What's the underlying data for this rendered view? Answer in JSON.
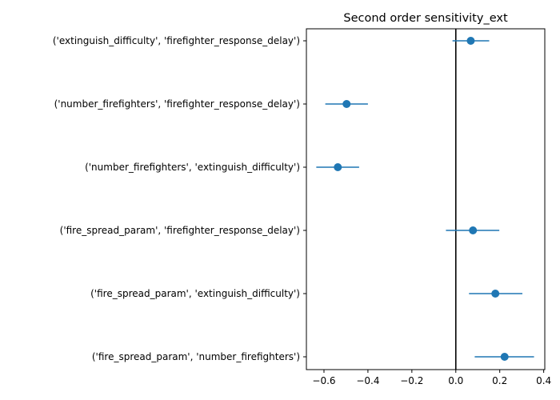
{
  "chart_data": {
    "type": "scatter",
    "title": "Second order sensitivity_ext",
    "xlabel": "",
    "ylabel": "",
    "xlim": [
      -0.68,
      0.405
    ],
    "x_ticks": [
      -0.6,
      -0.4,
      -0.2,
      0.0,
      0.2,
      0.4
    ],
    "x_tick_labels": [
      "−0.6",
      "−0.4",
      "−0.2",
      "0.0",
      "0.2",
      "0.4"
    ],
    "reference_line_x": 0,
    "grid": false,
    "marker_color": "#1f77b4",
    "reference_line_color": "#000000",
    "categories": [
      "('extinguish_difficulty', 'firefighter_response_delay')",
      "('number_firefighters', 'firefighter_response_delay')",
      "('number_firefighters', 'extinguish_difficulty')",
      "('fire_spread_param', 'firefighter_response_delay')",
      "('fire_spread_param', 'extinguish_difficulty')",
      "('fire_spread_param', 'number_firefighters')"
    ],
    "points": [
      {
        "value": 0.068,
        "err_low": -0.015,
        "err_high": 0.152
      },
      {
        "value": -0.497,
        "err_low": -0.594,
        "err_high": -0.4
      },
      {
        "value": -0.537,
        "err_low": -0.635,
        "err_high": -0.44
      },
      {
        "value": 0.078,
        "err_low": -0.045,
        "err_high": 0.198
      },
      {
        "value": 0.18,
        "err_low": 0.06,
        "err_high": 0.303
      },
      {
        "value": 0.222,
        "err_low": 0.086,
        "err_high": 0.356
      }
    ]
  }
}
